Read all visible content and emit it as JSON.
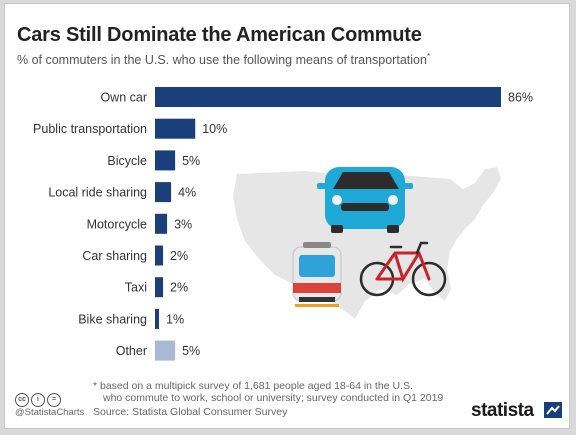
{
  "title": "Cars Still Dominate the American Commute",
  "subtitle": "% of commuters in the U.S. who use the following means of transportation",
  "subtitle_mark": "*",
  "footnote": {
    "line1": "* based on a multipick survey of 1,681 people aged 18-64 in the U.S.",
    "line2": "who commute to work, school or university; survey conducted in Q1 2019"
  },
  "source": "Source: Statista Global Consumer Survey",
  "handle": "@StatistaCharts",
  "logo": "statista",
  "colors": {
    "bar": "#1b3f7a",
    "other_bar": "#a9b9d3",
    "map": "#e6e6e6"
  },
  "icons": [
    "car-icon",
    "train-icon",
    "bicycle-icon",
    "us-map-icon",
    "cc-license-icon"
  ],
  "chart_data": {
    "type": "bar",
    "orientation": "horizontal",
    "categories": [
      "Own car",
      "Public transportation",
      "Bicycle",
      "Local ride sharing",
      "Motorcycle",
      "Car sharing",
      "Taxi",
      "Bike sharing",
      "Other"
    ],
    "values": [
      86,
      10,
      5,
      4,
      3,
      2,
      2,
      1,
      5
    ],
    "value_labels": [
      "86%",
      "10%",
      "5%",
      "4%",
      "3%",
      "2%",
      "2%",
      "1%",
      "5%"
    ],
    "xlim": [
      0,
      86
    ],
    "grid": false,
    "legend": "none"
  }
}
